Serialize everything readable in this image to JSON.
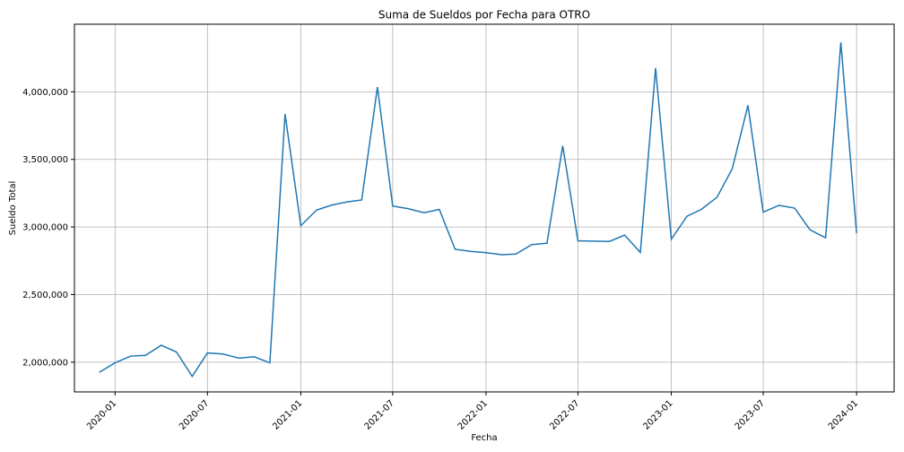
{
  "chart_data": {
    "type": "line",
    "title": "Suma de Sueldos por Fecha para OTRO",
    "xlabel": "Fecha",
    "ylabel": "Sueldo Total",
    "grid": true,
    "xlim": [
      "2019-10-13",
      "2024-03-15"
    ],
    "ylim": [
      1780000,
      4500000
    ],
    "xticks": [
      "2020-01",
      "2020-07",
      "2021-01",
      "2021-07",
      "2022-01",
      "2022-07",
      "2023-01",
      "2023-07",
      "2024-01"
    ],
    "yticks": [
      2000000,
      2500000,
      3000000,
      3500000,
      4000000
    ],
    "ytick_labels": [
      "2,000,000",
      "2,500,000",
      "3,000,000",
      "3,500,000",
      "4,000,000"
    ],
    "series": [
      {
        "color": "#1f77b4",
        "x": [
          "2019-12-01",
          "2020-01-01",
          "2020-02-01",
          "2020-03-01",
          "2020-04-01",
          "2020-05-01",
          "2020-06-01",
          "2020-07-01",
          "2020-08-01",
          "2020-09-01",
          "2020-10-01",
          "2020-11-01",
          "2020-12-01",
          "2021-01-01",
          "2021-02-01",
          "2021-03-01",
          "2021-04-01",
          "2021-05-01",
          "2021-06-01",
          "2021-07-01",
          "2021-08-01",
          "2021-09-01",
          "2021-10-01",
          "2021-11-01",
          "2021-12-01",
          "2022-01-01",
          "2022-02-01",
          "2022-03-01",
          "2022-04-01",
          "2022-05-01",
          "2022-06-01",
          "2022-07-01",
          "2022-08-01",
          "2022-09-01",
          "2022-10-01",
          "2022-11-01",
          "2022-12-01",
          "2023-01-01",
          "2023-02-01",
          "2023-03-01",
          "2023-04-01",
          "2023-05-01",
          "2023-06-01",
          "2023-07-01",
          "2023-08-01",
          "2023-09-01",
          "2023-10-01",
          "2023-11-01",
          "2023-12-01",
          "2024-01-01"
        ],
        "y": [
          1925000,
          1995000,
          2045000,
          2050000,
          2125000,
          2075000,
          1895000,
          2068000,
          2060000,
          2030000,
          2040000,
          1995000,
          3835000,
          3010000,
          3125000,
          3160000,
          3185000,
          3200000,
          4035000,
          3155000,
          3135000,
          3105000,
          3130000,
          2835000,
          2820000,
          2810000,
          2795000,
          2800000,
          2870000,
          2880000,
          3600000,
          2898000,
          2895000,
          2893000,
          2940000,
          2812000,
          4175000,
          2910000,
          3080000,
          3130000,
          3220000,
          3430000,
          3900000,
          3110000,
          3160000,
          3140000,
          2980000,
          2920000,
          4365000,
          2955000
        ]
      }
    ]
  }
}
